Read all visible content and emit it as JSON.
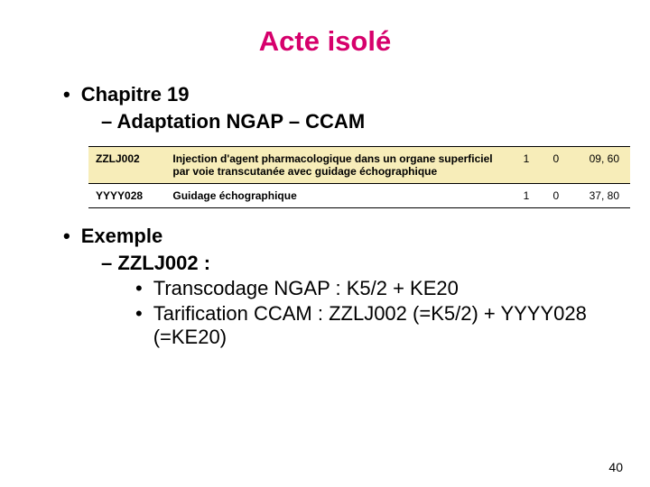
{
  "title": {
    "text": "Acte isolé",
    "color": "#d6006c",
    "fontsize": 31
  },
  "content_fontsize": 22,
  "chapter": {
    "bullet": "•",
    "label": "Chapitre 19",
    "sub_prefix": "–",
    "sub_label": "Adaptation NGAP – CCAM"
  },
  "table": {
    "highlight_bg": "#f7edb9",
    "border_color": "#000000",
    "rows": [
      {
        "code": "ZZLJ002",
        "desc": "Injection d'agent pharmacologique dans un organe superficiel par voie transcutanée avec guidage échographique",
        "c1": "1",
        "c2": "0",
        "price": "09, 60",
        "highlight": true
      },
      {
        "code": "YYYY028",
        "desc": "Guidage échographique",
        "c1": "1",
        "c2": "0",
        "price": "37, 80",
        "highlight": false
      }
    ]
  },
  "example": {
    "bullet": "•",
    "label": "Exemple",
    "sub_prefix": "–",
    "sub_label": "ZZLJ002 :",
    "items": [
      "Transcodage NGAP : K5/2 + KE20",
      "Tarification CCAM : ZZLJ002 (=K5/2) + YYYY028 (=KE20)"
    ]
  },
  "page_number": "40"
}
